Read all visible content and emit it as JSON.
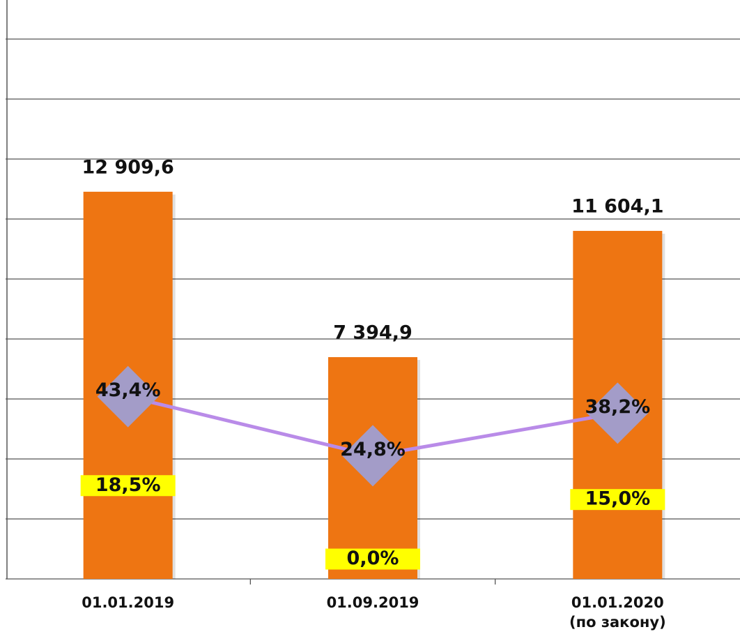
{
  "chart_data": {
    "type": "bar",
    "categories": [
      "01.01.2019",
      "01.09.2019",
      "01.01.2020\n(по закону)"
    ],
    "ylim": [
      0,
      18000
    ],
    "yticks": [
      0,
      2000,
      4000,
      6000,
      8000,
      10000,
      12000,
      14000,
      16000,
      18000
    ],
    "y2lim": [
      -14,
      156
    ],
    "y3lim": [
      -5,
      131
    ],
    "grid": true,
    "series": [
      {
        "type": "bar",
        "color": "#ee7512",
        "values": [
          12909.6,
          7394.9,
          11604.1
        ],
        "value_labels": [
          "12 909,6",
          "7 394,9",
          "11 604,1"
        ]
      },
      {
        "type": "line",
        "axis": "y2",
        "color": "#b98be8",
        "marker_color": "#a39cc8",
        "values": [
          43.4,
          24.8,
          38.2
        ],
        "value_labels": [
          "43,4%",
          "24,8%",
          "38,2%"
        ]
      },
      {
        "type": "line",
        "axis": "y3",
        "show_line": false,
        "color": "#ffff00",
        "values": [
          18.5,
          0.0,
          15.0
        ],
        "value_labels": [
          "18,5%",
          "0,0%",
          "15,0%"
        ]
      }
    ]
  }
}
